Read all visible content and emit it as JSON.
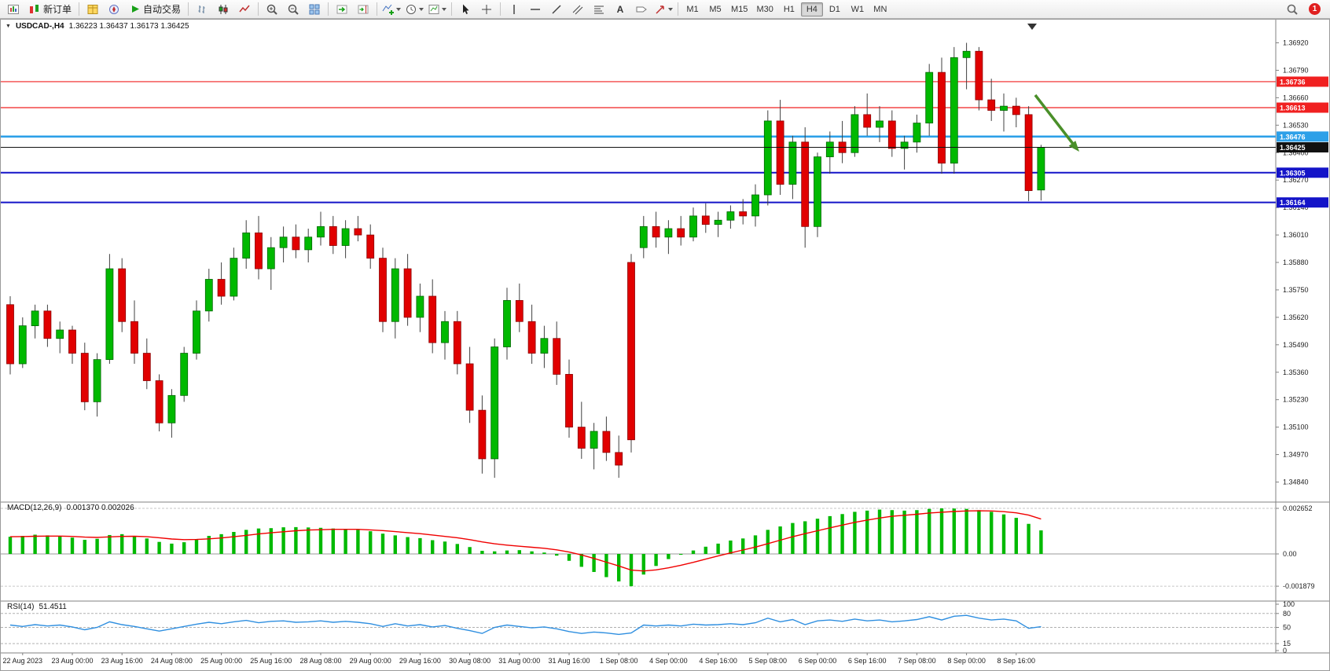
{
  "toolbar": {
    "new_order_label": "新订单",
    "autotrading_label": "自动交易",
    "timeframes": [
      "M1",
      "M5",
      "M15",
      "M30",
      "H1",
      "H4",
      "D1",
      "W1",
      "MN"
    ],
    "active_timeframe": "H4",
    "notification_count": "1"
  },
  "chart": {
    "title_symbol": "USDCAD-,H4",
    "title_ohlc": "1.36223 1.36437 1.36173 1.36425",
    "price_axis_ticks": [
      "1.36920",
      "1.36790",
      "1.36660",
      "1.36530",
      "1.36400",
      "1.36270",
      "1.36140",
      "1.36010",
      "1.35880",
      "1.35750",
      "1.35620",
      "1.35490",
      "1.35360",
      "1.35230",
      "1.35100",
      "1.34970",
      "1.34840"
    ],
    "time_axis_labels": [
      "22 Aug 2023",
      "23 Aug 00:00",
      "23 Aug 16:00",
      "24 Aug 08:00",
      "25 Aug 00:00",
      "25 Aug 16:00",
      "28 Aug 08:00",
      "29 Aug 00:00",
      "29 Aug 16:00",
      "30 Aug 08:00",
      "31 Aug 00:00",
      "31 Aug 16:00",
      "1 Sep 08:00",
      "4 Sep 00:00",
      "4 Sep 16:00",
      "5 Sep 08:00",
      "6 Sep 00:00",
      "6 Sep 16:00",
      "7 Sep 08:00",
      "8 Sep 00:00",
      "8 Sep 16:00"
    ],
    "hlines": [
      {
        "label": "1.36736",
        "price": 1.36736,
        "color": "#f02020",
        "width": 1.2
      },
      {
        "label": "1.36613",
        "price": 1.36613,
        "color": "#f02020",
        "width": 1.2
      },
      {
        "label": "1.36476",
        "price": 1.36476,
        "color": "#2da0e8",
        "width": 2.6
      },
      {
        "label": "1.36305",
        "price": 1.36305,
        "color": "#1414c8",
        "width": 2
      },
      {
        "label": "1.36164",
        "price": 1.36164,
        "color": "#1414c8",
        "width": 2
      }
    ],
    "current_price": {
      "label": "1.36425",
      "price": 1.36425,
      "color": "#111111"
    },
    "annotation_arrow": {
      "color": "#4a8f29"
    },
    "colors": {
      "up": "#00b900",
      "up_border": "#006600",
      "down": "#e10000",
      "down_border": "#8b0000",
      "wick": "#404040",
      "signal": "#f00000",
      "histogram": "#00b900",
      "rsi_line": "#2f8fe0"
    }
  },
  "chart_data": {
    "type": "candlestick",
    "symbol": "USDCAD",
    "period": "H4",
    "ohlc_current": {
      "open": 1.36223,
      "high": 1.36437,
      "low": 1.36173,
      "close": 1.36425
    },
    "candles": [
      [
        1.3568,
        1.3572,
        1.3535,
        1.354
      ],
      [
        1.354,
        1.3562,
        1.3538,
        1.3558
      ],
      [
        1.3558,
        1.3568,
        1.3552,
        1.3565
      ],
      [
        1.3565,
        1.3568,
        1.3548,
        1.3552
      ],
      [
        1.3552,
        1.356,
        1.3545,
        1.3556
      ],
      [
        1.3556,
        1.3558,
        1.354,
        1.3545
      ],
      [
        1.3545,
        1.355,
        1.3518,
        1.3522
      ],
      [
        1.3522,
        1.3545,
        1.3515,
        1.3542
      ],
      [
        1.3542,
        1.3592,
        1.354,
        1.3585
      ],
      [
        1.3585,
        1.359,
        1.3555,
        1.356
      ],
      [
        1.356,
        1.357,
        1.354,
        1.3545
      ],
      [
        1.3545,
        1.3552,
        1.3528,
        1.3532
      ],
      [
        1.3532,
        1.3535,
        1.3508,
        1.3512
      ],
      [
        1.3512,
        1.3528,
        1.3505,
        1.3525
      ],
      [
        1.3525,
        1.3548,
        1.3522,
        1.3545
      ],
      [
        1.3545,
        1.357,
        1.3542,
        1.3565
      ],
      [
        1.3565,
        1.3585,
        1.356,
        1.358
      ],
      [
        1.358,
        1.3588,
        1.3568,
        1.3572
      ],
      [
        1.3572,
        1.3595,
        1.357,
        1.359
      ],
      [
        1.359,
        1.3608,
        1.3585,
        1.3602
      ],
      [
        1.3602,
        1.361,
        1.358,
        1.3585
      ],
      [
        1.3585,
        1.36,
        1.3575,
        1.3595
      ],
      [
        1.3595,
        1.3605,
        1.3588,
        1.36
      ],
      [
        1.36,
        1.3606,
        1.359,
        1.3594
      ],
      [
        1.3594,
        1.3604,
        1.3588,
        1.36
      ],
      [
        1.36,
        1.3612,
        1.3596,
        1.3605
      ],
      [
        1.3605,
        1.361,
        1.3592,
        1.3596
      ],
      [
        1.3596,
        1.3608,
        1.359,
        1.3604
      ],
      [
        1.3604,
        1.361,
        1.3598,
        1.3601
      ],
      [
        1.3601,
        1.3606,
        1.3585,
        1.359
      ],
      [
        1.359,
        1.3595,
        1.3555,
        1.356
      ],
      [
        1.356,
        1.359,
        1.3552,
        1.3585
      ],
      [
        1.3585,
        1.3592,
        1.3558,
        1.3562
      ],
      [
        1.3562,
        1.3578,
        1.3555,
        1.3572
      ],
      [
        1.3572,
        1.358,
        1.3545,
        1.355
      ],
      [
        1.355,
        1.3565,
        1.3542,
        1.356
      ],
      [
        1.356,
        1.3565,
        1.3535,
        1.354
      ],
      [
        1.354,
        1.3548,
        1.3512,
        1.3518
      ],
      [
        1.3518,
        1.3525,
        1.3488,
        1.3495
      ],
      [
        1.3495,
        1.3552,
        1.3486,
        1.3548
      ],
      [
        1.3548,
        1.3576,
        1.3542,
        1.357
      ],
      [
        1.357,
        1.3578,
        1.3555,
        1.356
      ],
      [
        1.356,
        1.3568,
        1.354,
        1.3545
      ],
      [
        1.3545,
        1.3558,
        1.3538,
        1.3552
      ],
      [
        1.3552,
        1.356,
        1.353,
        1.3535
      ],
      [
        1.3535,
        1.3542,
        1.3505,
        1.351
      ],
      [
        1.351,
        1.3522,
        1.3495,
        1.35
      ],
      [
        1.35,
        1.3512,
        1.349,
        1.3508
      ],
      [
        1.3508,
        1.3515,
        1.3494,
        1.3498
      ],
      [
        1.3498,
        1.3506,
        1.3486,
        1.3492
      ],
      [
        1.3588,
        1.3592,
        1.3498,
        1.3504
      ],
      [
        1.3595,
        1.361,
        1.359,
        1.3605
      ],
      [
        1.3605,
        1.3612,
        1.3595,
        1.36
      ],
      [
        1.36,
        1.3608,
        1.3592,
        1.3604
      ],
      [
        1.3604,
        1.361,
        1.3596,
        1.36
      ],
      [
        1.36,
        1.3614,
        1.3598,
        1.361
      ],
      [
        1.361,
        1.3616,
        1.3602,
        1.3606
      ],
      [
        1.3606,
        1.3612,
        1.36,
        1.3608
      ],
      [
        1.3608,
        1.3615,
        1.3604,
        1.3612
      ],
      [
        1.3612,
        1.3618,
        1.3606,
        1.361
      ],
      [
        1.361,
        1.3625,
        1.3605,
        1.362
      ],
      [
        1.362,
        1.366,
        1.3615,
        1.3655
      ],
      [
        1.3655,
        1.3665,
        1.362,
        1.3625
      ],
      [
        1.3625,
        1.3648,
        1.3618,
        1.3645
      ],
      [
        1.3645,
        1.3652,
        1.3595,
        1.3605
      ],
      [
        1.3605,
        1.364,
        1.36,
        1.3638
      ],
      [
        1.3638,
        1.365,
        1.363,
        1.3645
      ],
      [
        1.3645,
        1.3655,
        1.3635,
        1.364
      ],
      [
        1.364,
        1.3662,
        1.3638,
        1.3658
      ],
      [
        1.3658,
        1.3668,
        1.3648,
        1.3652
      ],
      [
        1.3652,
        1.3662,
        1.3645,
        1.3655
      ],
      [
        1.3655,
        1.366,
        1.3638,
        1.3642
      ],
      [
        1.3642,
        1.3648,
        1.3632,
        1.3645
      ],
      [
        1.3645,
        1.3658,
        1.364,
        1.3654
      ],
      [
        1.3654,
        1.3682,
        1.3648,
        1.3678
      ],
      [
        1.3678,
        1.3685,
        1.363,
        1.3635
      ],
      [
        1.3635,
        1.369,
        1.363,
        1.3685
      ],
      [
        1.3685,
        1.3692,
        1.367,
        1.3688
      ],
      [
        1.3688,
        1.369,
        1.366,
        1.3665
      ],
      [
        1.3665,
        1.3675,
        1.3655,
        1.366
      ],
      [
        1.366,
        1.3668,
        1.365,
        1.3662
      ],
      [
        1.3662,
        1.3666,
        1.3652,
        1.3658
      ],
      [
        1.3658,
        1.3662,
        1.3617,
        1.3622
      ],
      [
        1.36223,
        1.36437,
        1.36173,
        1.36425
      ]
    ],
    "macd": {
      "label": "MACD(12,26,9)",
      "values_label": "0.001370 0.002026",
      "axis": [
        "0.002652",
        "0.00",
        "-0.001879"
      ],
      "axis_values": [
        0.002652,
        0,
        -0.001879
      ],
      "histogram": [
        0.001,
        0.00105,
        0.00112,
        0.00108,
        0.00102,
        0.00095,
        0.00082,
        0.00088,
        0.0011,
        0.00115,
        0.00105,
        0.0009,
        0.0007,
        0.0006,
        0.00068,
        0.00085,
        0.00105,
        0.00115,
        0.00128,
        0.0014,
        0.00148,
        0.0015,
        0.00155,
        0.00156,
        0.00154,
        0.00152,
        0.00148,
        0.00145,
        0.0014,
        0.00132,
        0.00118,
        0.00108,
        0.00098,
        0.00092,
        0.0008,
        0.00072,
        0.00058,
        0.0004,
        0.00018,
        0.00015,
        0.0002,
        0.00022,
        0.00015,
        8e-05,
        -0.0001,
        -0.0004,
        -0.00075,
        -0.00105,
        -0.00135,
        -0.0016,
        -0.00188,
        -0.0012,
        -0.0007,
        -0.0003,
        -5e-05,
        0.0002,
        0.00042,
        0.0006,
        0.00078,
        0.0009,
        0.00108,
        0.0014,
        0.0016,
        0.0018,
        0.0019,
        0.00205,
        0.0022,
        0.00232,
        0.00245,
        0.00252,
        0.00258,
        0.00255,
        0.00252,
        0.00255,
        0.00262,
        0.00265,
        0.00264,
        0.00262,
        0.00255,
        0.00245,
        0.0023,
        0.0021,
        0.00175,
        0.00137
      ],
      "signal": [
        0.001,
        0.00101,
        0.00103,
        0.00104,
        0.00104,
        0.00102,
        0.00098,
        0.00096,
        0.00099,
        0.00102,
        0.00103,
        0.001,
        0.00094,
        0.00087,
        0.00083,
        0.00084,
        0.00088,
        0.00093,
        0.001,
        0.00108,
        0.00116,
        0.00123,
        0.00129,
        0.00135,
        0.00139,
        0.00141,
        0.00143,
        0.00143,
        0.00143,
        0.0014,
        0.00136,
        0.0013,
        0.00124,
        0.00118,
        0.0011,
        0.00102,
        0.00094,
        0.00083,
        0.0007,
        0.00059,
        0.00051,
        0.00045,
        0.00039,
        0.00033,
        0.00024,
        0.00011,
        -6e-05,
        -0.00026,
        -0.00048,
        -0.0007,
        -0.00094,
        -0.00099,
        -0.00093,
        -0.00081,
        -0.00066,
        -0.00049,
        -0.0003,
        -0.00012,
        6e-05,
        0.00023,
        0.0004,
        0.0006,
        0.0008,
        0.001,
        0.00118,
        0.00135,
        0.00152,
        0.00168,
        0.00184,
        0.00197,
        0.00209,
        0.00219,
        0.00225,
        0.00231,
        0.00238,
        0.00243,
        0.00247,
        0.0025,
        0.00251,
        0.0025,
        0.00246,
        0.00239,
        0.00226,
        0.00203
      ]
    },
    "rsi": {
      "label": "RSI(14)",
      "value_label": "51.4511",
      "axis": [
        "100",
        "80",
        "50",
        "15",
        "0"
      ],
      "levels": [
        80,
        50,
        15
      ],
      "values": [
        55,
        52,
        56,
        53,
        55,
        51,
        45,
        50,
        62,
        56,
        52,
        47,
        42,
        47,
        52,
        57,
        61,
        58,
        62,
        65,
        60,
        63,
        64,
        61,
        62,
        64,
        61,
        63,
        61,
        58,
        52,
        58,
        53,
        56,
        51,
        54,
        48,
        43,
        37,
        50,
        55,
        52,
        49,
        51,
        47,
        41,
        37,
        40,
        38,
        35,
        38,
        55,
        53,
        55,
        53,
        57,
        55,
        56,
        58,
        56,
        60,
        70,
        62,
        67,
        56,
        64,
        66,
        63,
        68,
        64,
        66,
        62,
        64,
        67,
        73,
        66,
        74,
        76,
        70,
        66,
        68,
        64,
        48,
        51.4511
      ]
    }
  }
}
